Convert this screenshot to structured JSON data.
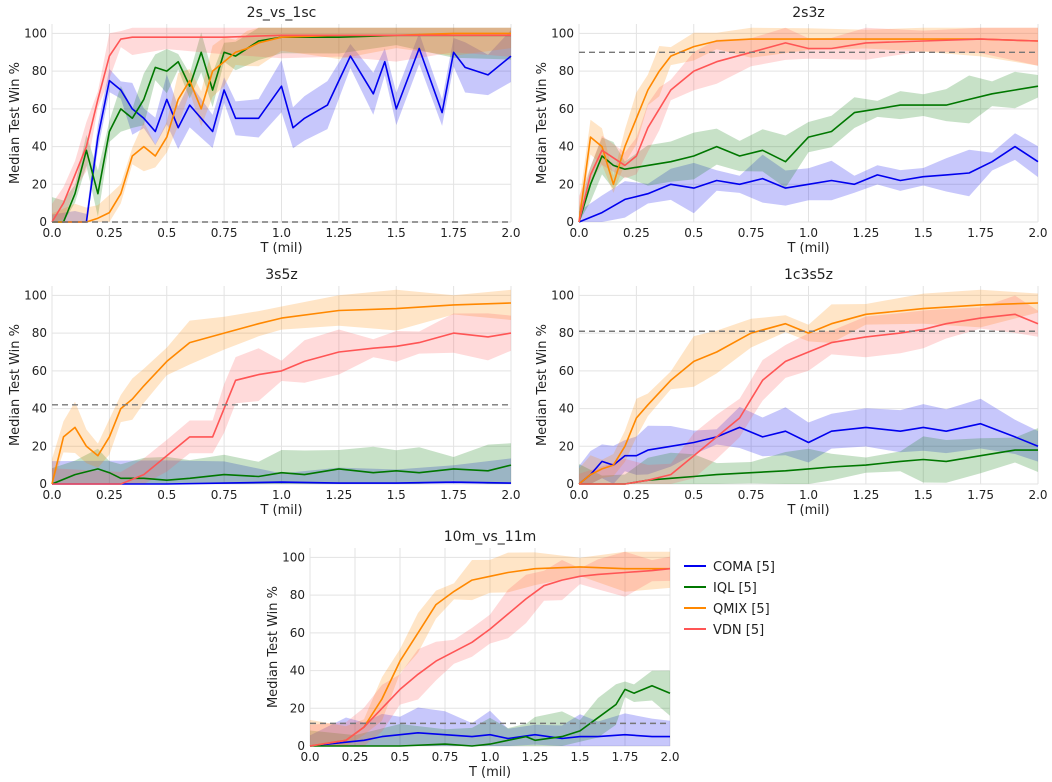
{
  "chart_data": [
    {
      "type": "line",
      "title": "2s_vs_1sc",
      "xlabel": "T (mil)",
      "ylabel": "Median Test Win %",
      "xlim": [
        0,
        2
      ],
      "ylim": [
        0,
        105
      ],
      "xticks": [
        "0.0",
        "0.25",
        "0.5",
        "0.75",
        "1.0",
        "1.25",
        "1.5",
        "1.75",
        "2.0"
      ],
      "yticks": [
        "0",
        "20",
        "40",
        "60",
        "80",
        "100"
      ],
      "baseline": 0,
      "grid": true,
      "series": [
        {
          "name": "COMA [5]",
          "color": "#0000ee",
          "x": [
            0,
            0.1,
            0.15,
            0.2,
            0.25,
            0.3,
            0.35,
            0.4,
            0.45,
            0.5,
            0.55,
            0.6,
            0.7,
            0.75,
            0.8,
            0.9,
            1.0,
            1.05,
            1.1,
            1.2,
            1.3,
            1.4,
            1.45,
            1.5,
            1.6,
            1.7,
            1.75,
            1.8,
            1.9,
            2.0
          ],
          "y": [
            0,
            0,
            0,
            45,
            75,
            70,
            60,
            55,
            48,
            65,
            50,
            62,
            48,
            70,
            55,
            55,
            72,
            50,
            55,
            62,
            88,
            68,
            85,
            60,
            92,
            58,
            90,
            82,
            78,
            88
          ]
        },
        {
          "name": "IQL [5]",
          "color": "#007700",
          "x": [
            0,
            0.05,
            0.1,
            0.15,
            0.2,
            0.25,
            0.3,
            0.35,
            0.4,
            0.45,
            0.5,
            0.55,
            0.6,
            0.65,
            0.7,
            0.75,
            0.8,
            0.9,
            1.0,
            1.25,
            1.5,
            1.75,
            2.0
          ],
          "y": [
            0,
            0,
            15,
            38,
            15,
            48,
            60,
            55,
            65,
            82,
            80,
            85,
            72,
            90,
            70,
            90,
            88,
            96,
            98,
            98,
            99,
            99,
            99
          ]
        },
        {
          "name": "QMIX [5]",
          "color": "#ff8800",
          "x": [
            0,
            0.1,
            0.15,
            0.2,
            0.25,
            0.3,
            0.35,
            0.4,
            0.45,
            0.5,
            0.55,
            0.6,
            0.65,
            0.7,
            0.75,
            0.8,
            0.85,
            0.9,
            1.0,
            1.25,
            1.5,
            1.75,
            2.0
          ],
          "y": [
            0,
            0,
            0,
            2,
            5,
            15,
            35,
            40,
            35,
            45,
            65,
            75,
            60,
            80,
            85,
            90,
            92,
            95,
            98,
            99,
            99,
            100,
            100
          ]
        },
        {
          "name": "VDN [5]",
          "color": "#ff5555",
          "x": [
            0,
            0.05,
            0.1,
            0.15,
            0.2,
            0.25,
            0.3,
            0.35,
            0.5,
            0.75,
            1.0,
            1.25,
            1.5,
            1.75,
            2.0
          ],
          "y": [
            0,
            10,
            25,
            40,
            65,
            88,
            97,
            98,
            98,
            98,
            99,
            99,
            99,
            99,
            99
          ]
        }
      ]
    },
    {
      "type": "line",
      "title": "2s3z",
      "xlabel": "T (mil)",
      "ylabel": "Median Test Win %",
      "xlim": [
        0,
        2
      ],
      "ylim": [
        0,
        105
      ],
      "xticks": [
        "0.0",
        "0.25",
        "0.5",
        "0.75",
        "1.0",
        "1.25",
        "1.5",
        "1.75",
        "2.0"
      ],
      "yticks": [
        "0",
        "20",
        "40",
        "60",
        "80",
        "100"
      ],
      "baseline": 90,
      "grid": true,
      "series": [
        {
          "name": "COMA [5]",
          "color": "#0000ee",
          "x": [
            0,
            0.1,
            0.2,
            0.3,
            0.4,
            0.5,
            0.6,
            0.7,
            0.8,
            0.9,
            1.0,
            1.1,
            1.2,
            1.3,
            1.4,
            1.5,
            1.6,
            1.7,
            1.8,
            1.9,
            2.0
          ],
          "y": [
            0,
            5,
            12,
            15,
            20,
            18,
            22,
            20,
            23,
            18,
            20,
            22,
            20,
            25,
            22,
            24,
            25,
            26,
            32,
            40,
            32
          ]
        },
        {
          "name": "IQL [5]",
          "color": "#007700",
          "x": [
            0,
            0.05,
            0.1,
            0.15,
            0.2,
            0.3,
            0.4,
            0.5,
            0.6,
            0.7,
            0.8,
            0.9,
            1.0,
            1.1,
            1.2,
            1.3,
            1.4,
            1.5,
            1.6,
            1.7,
            1.8,
            1.9,
            2.0
          ],
          "y": [
            0,
            20,
            35,
            30,
            28,
            30,
            32,
            35,
            40,
            35,
            38,
            32,
            45,
            48,
            58,
            60,
            62,
            62,
            62,
            65,
            68,
            70,
            72
          ]
        },
        {
          "name": "QMIX [5]",
          "color": "#ff8800",
          "x": [
            0,
            0.05,
            0.1,
            0.15,
            0.2,
            0.25,
            0.3,
            0.35,
            0.4,
            0.5,
            0.6,
            0.75,
            1.0,
            1.25,
            1.5,
            1.75,
            2.0
          ],
          "y": [
            0,
            45,
            40,
            20,
            40,
            55,
            70,
            80,
            88,
            93,
            96,
            97,
            97,
            97,
            97,
            97,
            96
          ]
        },
        {
          "name": "VDN [5]",
          "color": "#ff5555",
          "x": [
            0,
            0.05,
            0.1,
            0.2,
            0.25,
            0.3,
            0.35,
            0.4,
            0.5,
            0.6,
            0.75,
            0.9,
            1.0,
            1.1,
            1.25,
            1.5,
            1.75,
            2.0
          ],
          "y": [
            0,
            25,
            38,
            30,
            35,
            50,
            60,
            70,
            80,
            85,
            90,
            95,
            92,
            92,
            95,
            96,
            97,
            96
          ]
        }
      ]
    },
    {
      "type": "line",
      "title": "3s5z",
      "xlabel": "T (mil)",
      "ylabel": "Median Test Win %",
      "xlim": [
        0,
        2
      ],
      "ylim": [
        0,
        105
      ],
      "xticks": [
        "0.0",
        "0.25",
        "0.5",
        "0.75",
        "1.0",
        "1.25",
        "1.5",
        "1.75",
        "2.0"
      ],
      "yticks": [
        "0",
        "20",
        "40",
        "60",
        "80",
        "100"
      ],
      "baseline": 42,
      "grid": true,
      "series": [
        {
          "name": "COMA [5]",
          "color": "#0000ee",
          "x": [
            0,
            0.5,
            0.75,
            1.0,
            1.25,
            1.5,
            1.75,
            2.0
          ],
          "y": [
            0,
            0,
            0.5,
            1,
            0.5,
            0.5,
            1,
            0.5
          ]
        },
        {
          "name": "IQL [5]",
          "color": "#007700",
          "x": [
            0,
            0.1,
            0.2,
            0.25,
            0.3,
            0.4,
            0.5,
            0.6,
            0.75,
            0.9,
            1.0,
            1.1,
            1.25,
            1.4,
            1.5,
            1.6,
            1.75,
            1.9,
            2.0
          ],
          "y": [
            0,
            5,
            8,
            6,
            3,
            3,
            2,
            3,
            5,
            4,
            6,
            5,
            8,
            6,
            7,
            6,
            8,
            7,
            10
          ]
        },
        {
          "name": "QMIX [5]",
          "color": "#ff8800",
          "x": [
            0,
            0.05,
            0.1,
            0.15,
            0.2,
            0.25,
            0.3,
            0.35,
            0.4,
            0.5,
            0.6,
            0.75,
            0.9,
            1.0,
            1.25,
            1.5,
            1.75,
            2.0
          ],
          "y": [
            0,
            25,
            30,
            20,
            15,
            25,
            40,
            45,
            52,
            65,
            75,
            80,
            85,
            88,
            92,
            93,
            95,
            96
          ]
        },
        {
          "name": "VDN [5]",
          "color": "#ff5555",
          "x": [
            0,
            0.3,
            0.4,
            0.5,
            0.6,
            0.7,
            0.75,
            0.8,
            0.9,
            1.0,
            1.1,
            1.25,
            1.4,
            1.5,
            1.6,
            1.75,
            1.9,
            2.0
          ],
          "y": [
            0,
            0,
            5,
            15,
            25,
            25,
            40,
            55,
            58,
            60,
            65,
            70,
            72,
            73,
            75,
            80,
            78,
            80
          ]
        }
      ]
    },
    {
      "type": "line",
      "title": "1c3s5z",
      "xlabel": "T (mil)",
      "ylabel": "Median Test Win %",
      "xlim": [
        0,
        2
      ],
      "ylim": [
        0,
        105
      ],
      "xticks": [
        "0.0",
        "0.25",
        "0.5",
        "0.75",
        "1.0",
        "1.25",
        "1.5",
        "1.75",
        "2.0"
      ],
      "yticks": [
        "0",
        "20",
        "40",
        "60",
        "80",
        "100"
      ],
      "baseline": 81,
      "grid": true,
      "series": [
        {
          "name": "COMA [5]",
          "color": "#0000ee",
          "x": [
            0,
            0.05,
            0.1,
            0.15,
            0.2,
            0.25,
            0.3,
            0.4,
            0.5,
            0.6,
            0.7,
            0.8,
            0.9,
            1.0,
            1.1,
            1.25,
            1.4,
            1.5,
            1.6,
            1.75,
            1.9,
            2.0
          ],
          "y": [
            0,
            5,
            12,
            10,
            15,
            15,
            18,
            20,
            22,
            25,
            30,
            25,
            28,
            22,
            28,
            30,
            28,
            30,
            28,
            32,
            25,
            20
          ]
        },
        {
          "name": "IQL [5]",
          "color": "#007700",
          "x": [
            0,
            0.1,
            0.2,
            0.3,
            0.4,
            0.5,
            0.6,
            0.75,
            0.9,
            1.0,
            1.1,
            1.25,
            1.4,
            1.5,
            1.6,
            1.75,
            1.9,
            2.0
          ],
          "y": [
            0,
            0,
            0,
            2,
            3,
            4,
            5,
            6,
            7,
            8,
            9,
            10,
            12,
            13,
            12,
            15,
            18,
            18
          ]
        },
        {
          "name": "QMIX [5]",
          "color": "#ff8800",
          "x": [
            0,
            0.05,
            0.1,
            0.15,
            0.2,
            0.25,
            0.3,
            0.4,
            0.5,
            0.6,
            0.75,
            0.9,
            1.0,
            1.1,
            1.25,
            1.5,
            1.75,
            2.0
          ],
          "y": [
            0,
            5,
            8,
            10,
            20,
            35,
            42,
            55,
            65,
            70,
            80,
            85,
            80,
            85,
            90,
            93,
            95,
            96
          ]
        },
        {
          "name": "VDN [5]",
          "color": "#ff5555",
          "x": [
            0,
            0.2,
            0.3,
            0.4,
            0.5,
            0.6,
            0.7,
            0.75,
            0.8,
            0.9,
            1.0,
            1.1,
            1.25,
            1.4,
            1.5,
            1.6,
            1.75,
            1.9,
            2.0
          ],
          "y": [
            0,
            0,
            2,
            5,
            15,
            25,
            35,
            45,
            55,
            65,
            70,
            75,
            78,
            80,
            82,
            85,
            88,
            90,
            85
          ]
        }
      ]
    },
    {
      "type": "line",
      "title": "10m_vs_11m",
      "xlabel": "T (mil)",
      "ylabel": "Median Test Win %",
      "xlim": [
        0,
        2
      ],
      "ylim": [
        0,
        105
      ],
      "xticks": [
        "0.0",
        "0.25",
        "0.5",
        "0.75",
        "1.0",
        "1.25",
        "1.5",
        "1.75",
        "2.0"
      ],
      "yticks": [
        "0",
        "20",
        "40",
        "60",
        "80",
        "100"
      ],
      "baseline": 12,
      "grid": true,
      "series": [
        {
          "name": "COMA [5]",
          "color": "#0000ee",
          "x": [
            0,
            0.2,
            0.3,
            0.4,
            0.5,
            0.6,
            0.75,
            0.9,
            1.0,
            1.1,
            1.25,
            1.4,
            1.5,
            1.6,
            1.75,
            1.9,
            2.0
          ],
          "y": [
            0,
            2,
            3,
            5,
            6,
            7,
            6,
            5,
            6,
            4,
            6,
            4,
            5,
            5,
            6,
            5,
            5
          ]
        },
        {
          "name": "IQL [5]",
          "color": "#007700",
          "x": [
            0,
            0.25,
            0.5,
            0.75,
            0.9,
            1.0,
            1.1,
            1.2,
            1.25,
            1.4,
            1.5,
            1.6,
            1.7,
            1.75,
            1.8,
            1.9,
            2.0
          ],
          "y": [
            0,
            0,
            0,
            1,
            0,
            1,
            3,
            5,
            3,
            5,
            8,
            15,
            22,
            30,
            28,
            32,
            28
          ]
        },
        {
          "name": "QMIX [5]",
          "color": "#ff8800",
          "x": [
            0,
            0.2,
            0.3,
            0.4,
            0.5,
            0.6,
            0.7,
            0.8,
            0.9,
            1.0,
            1.1,
            1.25,
            1.5,
            1.75,
            2.0
          ],
          "y": [
            0,
            3,
            10,
            25,
            45,
            60,
            75,
            82,
            88,
            90,
            92,
            94,
            95,
            94,
            94
          ]
        },
        {
          "name": "VDN [5]",
          "color": "#ff5555",
          "x": [
            0,
            0.2,
            0.3,
            0.4,
            0.5,
            0.6,
            0.7,
            0.8,
            0.9,
            1.0,
            1.1,
            1.2,
            1.3,
            1.4,
            1.5,
            1.6,
            1.75,
            1.9,
            2.0
          ],
          "y": [
            0,
            3,
            10,
            20,
            30,
            38,
            45,
            50,
            55,
            62,
            70,
            78,
            85,
            88,
            90,
            91,
            92,
            93,
            94
          ]
        }
      ]
    }
  ],
  "legend": [
    {
      "label": "COMA [5]",
      "color": "#0000ee"
    },
    {
      "label": "IQL [5]",
      "color": "#007700"
    },
    {
      "label": "QMIX [5]",
      "color": "#ff8800"
    },
    {
      "label": "VDN [5]",
      "color": "#ff5555"
    }
  ]
}
